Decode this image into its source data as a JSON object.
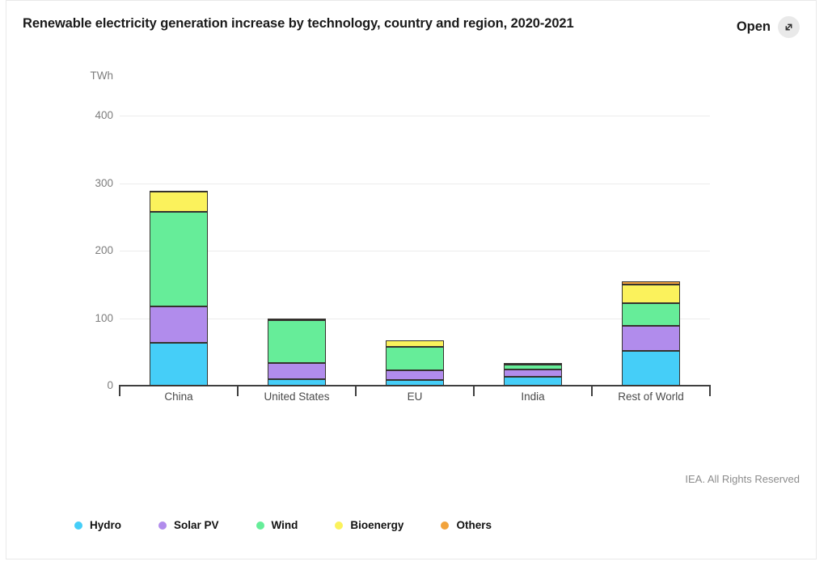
{
  "header": {
    "title": "Renewable electricity generation increase by technology, country and region, 2020-2021",
    "open_label": "Open"
  },
  "footer": {
    "copyright": "IEA. All Rights Reserved"
  },
  "icons": {
    "expand": "expand-diagonal-arrow",
    "expand_color": "#2f2f2f",
    "expand_bg": "#e9e9e9"
  },
  "chart_data": {
    "type": "bar",
    "stacked": true,
    "title": "Renewable electricity generation increase by technology, country and region, 2020-2021",
    "unit": "TWh",
    "ylabel": "TWh",
    "xlabel": "",
    "categories": [
      "China",
      "United States",
      "EU",
      "India",
      "Rest of World"
    ],
    "series": [
      {
        "name": "Hydro",
        "color": "#45cef8",
        "values": [
          64,
          10,
          8,
          13,
          52
        ]
      },
      {
        "name": "Solar PV",
        "color": "#b18cec",
        "values": [
          53,
          24,
          15,
          11,
          37
        ]
      },
      {
        "name": "Wind",
        "color": "#66ed99",
        "values": [
          141,
          63,
          35,
          7,
          33
        ]
      },
      {
        "name": "Bioenergy",
        "color": "#fbf25c",
        "values": [
          29,
          3,
          9,
          2,
          28
        ]
      },
      {
        "name": "Others",
        "color": "#f2a33c",
        "values": [
          1.5,
          0,
          0,
          0,
          4
        ]
      }
    ],
    "totals": [
      288.5,
      100,
      67,
      33,
      154
    ],
    "ylim": [
      0,
      400
    ],
    "yticks": [
      0,
      100,
      200,
      300,
      400
    ],
    "grid": true,
    "legend_position": "bottom",
    "grid_color": "#ececec",
    "axis_color": "#3f3f3f",
    "segment_border_color": "#35322e"
  }
}
